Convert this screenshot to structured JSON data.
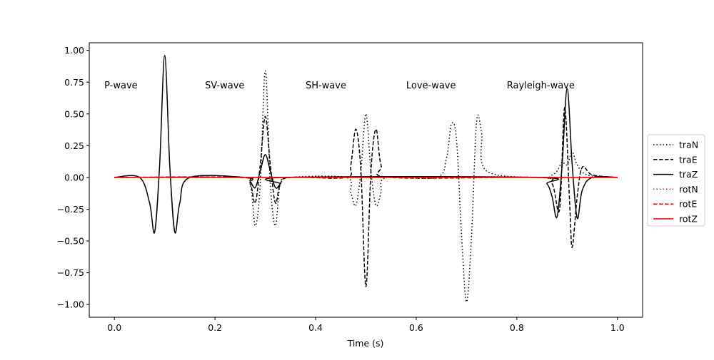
{
  "chart_data": {
    "type": "line",
    "title": "",
    "xlabel": "Time (s)",
    "ylabel": "",
    "xlim": [
      -0.05,
      1.05
    ],
    "ylim": [
      -1.1,
      1.06
    ],
    "grid": false,
    "legend_position": "right",
    "x_ticks": [
      0.0,
      0.2,
      0.4,
      0.6,
      0.8,
      1.0
    ],
    "x_tick_labels": [
      "0.0",
      "0.2",
      "0.4",
      "0.6",
      "0.8",
      "1.0"
    ],
    "y_ticks": [
      -1.0,
      -0.75,
      -0.5,
      -0.25,
      0.0,
      0.25,
      0.5,
      0.75,
      1.0
    ],
    "y_tick_labels": [
      "−1.00",
      "−0.75",
      "−0.50",
      "−0.25",
      "0.00",
      "0.25",
      "0.50",
      "0.75",
      "1.00"
    ],
    "annotations": [
      {
        "text": "P-wave",
        "x": -0.02,
        "y": 0.7
      },
      {
        "text": "SV-wave",
        "x": 0.18,
        "y": 0.7
      },
      {
        "text": "SH-wave",
        "x": 0.38,
        "y": 0.7
      },
      {
        "text": "Love-wave",
        "x": 0.58,
        "y": 0.7
      },
      {
        "text": "Rayleigh-wave",
        "x": 0.78,
        "y": 0.7
      }
    ],
    "series": [
      {
        "name": "traN",
        "color": "#000000",
        "style": "dotted",
        "x": [
          0.0,
          0.25,
          0.27,
          0.28,
          0.29,
          0.3,
          0.31,
          0.32,
          0.33,
          0.35,
          0.46,
          0.47,
          0.48,
          0.49,
          0.5,
          0.51,
          0.52,
          0.53,
          0.54,
          0.64,
          0.66,
          0.67,
          0.68,
          0.69,
          0.7,
          0.71,
          0.72,
          0.73,
          0.74,
          0.85,
          0.87,
          0.88,
          0.89,
          0.9,
          0.91,
          0.92,
          0.94,
          1.0
        ],
        "y": [
          0.0,
          0.0,
          -0.05,
          -0.38,
          -0.05,
          0.84,
          -0.05,
          -0.38,
          -0.05,
          0.0,
          0.0,
          -0.12,
          -0.22,
          0.05,
          0.5,
          0.05,
          -0.22,
          -0.12,
          0.0,
          0.0,
          0.15,
          0.42,
          0.3,
          -0.45,
          -0.98,
          -0.45,
          0.44,
          0.35,
          0.05,
          0.0,
          0.02,
          0.05,
          0.12,
          0.1,
          0.2,
          0.1,
          0.02,
          0.0
        ]
      },
      {
        "name": "traE",
        "color": "#000000",
        "style": "dashed",
        "x": [
          0.0,
          0.25,
          0.27,
          0.28,
          0.29,
          0.3,
          0.31,
          0.32,
          0.33,
          0.35,
          0.46,
          0.47,
          0.48,
          0.49,
          0.5,
          0.51,
          0.52,
          0.53,
          0.55,
          0.84,
          0.87,
          0.885,
          0.895,
          0.905,
          0.91,
          0.92,
          0.93,
          0.95,
          1.0
        ],
        "y": [
          0.0,
          0.0,
          -0.05,
          -0.2,
          0.1,
          0.48,
          0.1,
          -0.2,
          -0.05,
          0.0,
          0.0,
          0.1,
          0.38,
          0.05,
          -0.86,
          0.05,
          0.38,
          0.1,
          0.0,
          0.0,
          -0.05,
          -0.25,
          0.55,
          -0.2,
          -0.55,
          -0.15,
          0.08,
          0.02,
          0.0
        ]
      },
      {
        "name": "traZ",
        "color": "#000000",
        "style": "solid",
        "x": [
          0.0,
          0.05,
          0.07,
          0.08,
          0.09,
          0.1,
          0.11,
          0.12,
          0.13,
          0.15,
          0.26,
          0.27,
          0.28,
          0.29,
          0.3,
          0.31,
          0.32,
          0.33,
          0.34,
          0.84,
          0.86,
          0.87,
          0.88,
          0.89,
          0.9,
          0.91,
          0.92,
          0.93,
          0.95,
          1.0
        ],
        "y": [
          0.0,
          0.0,
          -0.2,
          -0.43,
          0.1,
          0.96,
          0.1,
          -0.43,
          -0.2,
          0.0,
          0.0,
          -0.03,
          -0.08,
          0.05,
          0.18,
          0.05,
          -0.08,
          -0.05,
          0.0,
          0.0,
          -0.05,
          -0.15,
          -0.31,
          0.1,
          0.7,
          0.1,
          -0.32,
          -0.1,
          0.0,
          0.0
        ]
      },
      {
        "name": "rotN",
        "color": "#ff0000",
        "style": "dotted",
        "x": [
          0.0,
          1.0
        ],
        "y": [
          0.0,
          0.0
        ]
      },
      {
        "name": "rotE",
        "color": "#ff0000",
        "style": "dashed",
        "x": [
          0.0,
          1.0
        ],
        "y": [
          0.0,
          0.0
        ]
      },
      {
        "name": "rotZ",
        "color": "#ff0000",
        "style": "solid",
        "x": [
          0.0,
          1.0
        ],
        "y": [
          0.0,
          0.0
        ]
      }
    ]
  }
}
